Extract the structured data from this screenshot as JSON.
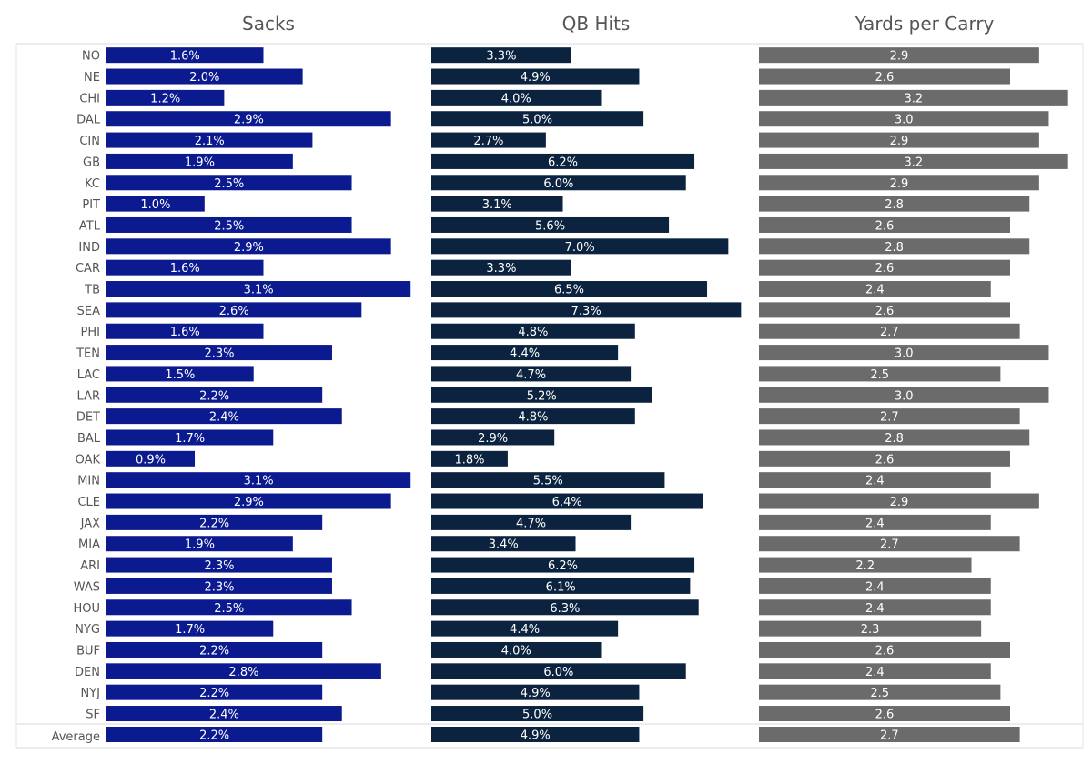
{
  "chart_data": {
    "type": "bar",
    "orientation": "horizontal",
    "categories": [
      "NO",
      "NE",
      "CHI",
      "DAL",
      "CIN",
      "GB",
      "KC",
      "PIT",
      "ATL",
      "IND",
      "CAR",
      "TB",
      "SEA",
      "PHI",
      "TEN",
      "LAC",
      "LAR",
      "DET",
      "BAL",
      "OAK",
      "MIN",
      "CLE",
      "JAX",
      "MIA",
      "ARI",
      "WAS",
      "HOU",
      "NYG",
      "BUF",
      "DEN",
      "NYJ",
      "SF"
    ],
    "summary_row": "Average",
    "grid": false,
    "legend": "none",
    "panels": [
      {
        "title": "Sacks",
        "color": "#0b1a8f",
        "values": [
          1.6,
          2.0,
          1.2,
          2.9,
          2.1,
          1.9,
          2.5,
          1.0,
          2.5,
          2.9,
          1.6,
          3.1,
          2.6,
          1.6,
          2.3,
          1.5,
          2.2,
          2.4,
          1.7,
          0.9,
          3.1,
          2.9,
          2.2,
          1.9,
          2.3,
          2.3,
          2.5,
          1.7,
          2.2,
          2.8,
          2.2,
          2.4
        ],
        "labels": [
          "1.6%",
          "2.0%",
          "1.2%",
          "2.9%",
          "2.1%",
          "1.9%",
          "2.5%",
          "1.0%",
          "2.5%",
          "2.9%",
          "1.6%",
          "3.1%",
          "2.6%",
          "1.6%",
          "2.3%",
          "1.5%",
          "2.2%",
          "2.4%",
          "1.7%",
          "0.9%",
          "3.1%",
          "2.9%",
          "2.2%",
          "1.9%",
          "2.3%",
          "2.3%",
          "2.5%",
          "1.7%",
          "2.2%",
          "2.8%",
          "2.2%",
          "2.4%"
        ],
        "average": 2.2,
        "average_label": "2.2%",
        "xlim": [
          0,
          3.2
        ]
      },
      {
        "title": "QB Hits",
        "color": "#0c2340",
        "values": [
          3.3,
          4.9,
          4.0,
          5.0,
          2.7,
          6.2,
          6.0,
          3.1,
          5.6,
          7.0,
          3.3,
          6.5,
          7.3,
          4.8,
          4.4,
          4.7,
          5.2,
          4.8,
          2.9,
          1.8,
          5.5,
          6.4,
          4.7,
          3.4,
          6.2,
          6.1,
          6.3,
          4.4,
          4.0,
          6.0,
          4.9,
          5.0
        ],
        "labels": [
          "3.3%",
          "4.9%",
          "4.0%",
          "5.0%",
          "2.7%",
          "6.2%",
          "6.0%",
          "3.1%",
          "5.6%",
          "7.0%",
          "3.3%",
          "6.5%",
          "7.3%",
          "4.8%",
          "4.4%",
          "4.7%",
          "5.2%",
          "4.8%",
          "2.9%",
          "1.8%",
          "5.5%",
          "6.4%",
          "4.7%",
          "3.4%",
          "6.2%",
          "6.1%",
          "6.3%",
          "4.4%",
          "4.0%",
          "6.0%",
          "4.9%",
          "5.0%"
        ],
        "average": 4.9,
        "average_label": "4.9%",
        "xlim": [
          0,
          7.4
        ]
      },
      {
        "title": "Yards per Carry",
        "color": "#6b6b6b",
        "values": [
          2.9,
          2.6,
          3.2,
          3.0,
          2.9,
          3.2,
          2.9,
          2.8,
          2.6,
          2.8,
          2.6,
          2.4,
          2.6,
          2.7,
          3.0,
          2.5,
          3.0,
          2.7,
          2.8,
          2.6,
          2.4,
          2.9,
          2.4,
          2.7,
          2.2,
          2.4,
          2.4,
          2.3,
          2.6,
          2.4,
          2.5,
          2.6
        ],
        "labels": [
          "2.9",
          "2.6",
          "3.2",
          "3.0",
          "2.9",
          "3.2",
          "2.9",
          "2.8",
          "2.6",
          "2.8",
          "2.6",
          "2.4",
          "2.6",
          "2.7",
          "3.0",
          "2.5",
          "3.0",
          "2.7",
          "2.8",
          "2.6",
          "2.4",
          "2.9",
          "2.4",
          "2.7",
          "2.2",
          "2.4",
          "2.4",
          "2.3",
          "2.6",
          "2.4",
          "2.5",
          "2.6"
        ],
        "average": 2.7,
        "average_label": "2.7",
        "xlim": [
          0,
          3.25
        ]
      }
    ]
  }
}
